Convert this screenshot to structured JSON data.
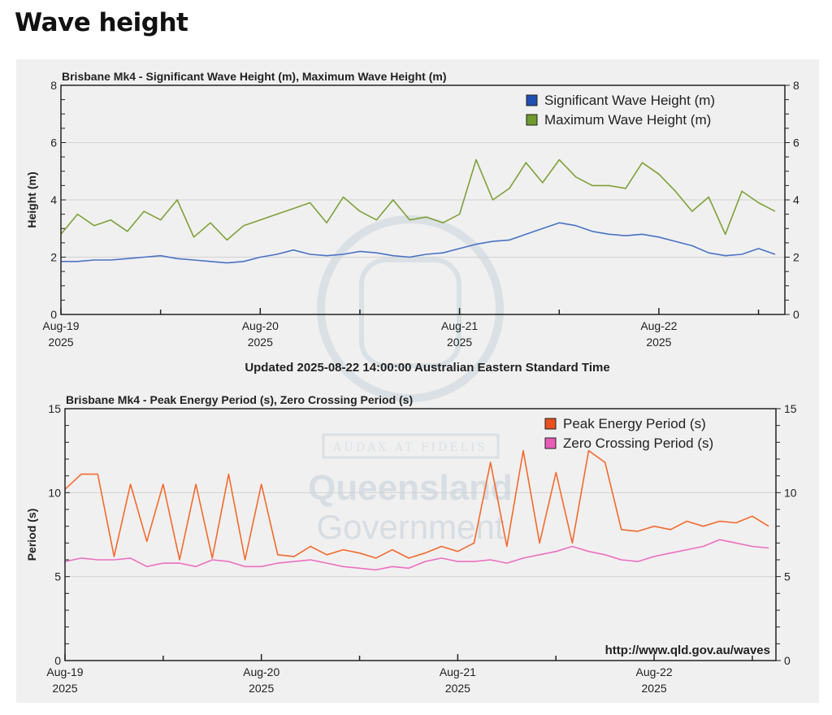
{
  "page_title": "Wave height",
  "updated_text": "Updated 2025-08-22 14:00:00 Australian Eastern Standard Time",
  "credit_url": "http://www.qld.gov.au/waves",
  "watermark": {
    "line1": "Queensland",
    "line2": "Government",
    "motto": "AUDAX AT FIDELIS"
  },
  "chart_data": [
    {
      "type": "line",
      "title": "Brisbane Mk4 - Significant Wave Height (m), Maximum Wave Height (m)",
      "xlabel": "",
      "ylabel": "Height (m)",
      "ylim": [
        0,
        8
      ],
      "yticks": [
        "0",
        "2",
        "4",
        "6",
        "8"
      ],
      "grid": true,
      "legend_position": "top-right",
      "x_unit": "hours since Aug-19 2025 00:00",
      "xticks": [
        {
          "label": "Aug-19",
          "year": "2025"
        },
        {
          "label": "Aug-20",
          "year": "2025"
        },
        {
          "label": "Aug-21",
          "year": "2025"
        },
        {
          "label": "Aug-22",
          "year": "2025"
        }
      ],
      "x": [
        0,
        2,
        4,
        6,
        8,
        10,
        12,
        14,
        16,
        18,
        20,
        22,
        24,
        26,
        28,
        30,
        32,
        34,
        36,
        38,
        40,
        42,
        44,
        46,
        48,
        50,
        52,
        54,
        56,
        58,
        60,
        62,
        64,
        66,
        68,
        70,
        72,
        74,
        76,
        78,
        80,
        82,
        84,
        86
      ],
      "series": [
        {
          "name": "Significant Wave Height (m)",
          "color": "#4a72c4",
          "swatch": "#1f4fb0",
          "values": [
            1.85,
            1.85,
            1.9,
            1.9,
            1.95,
            2.0,
            2.05,
            1.95,
            1.9,
            1.85,
            1.8,
            1.85,
            2.0,
            2.1,
            2.25,
            2.1,
            2.05,
            2.1,
            2.2,
            2.15,
            2.05,
            2.0,
            2.1,
            2.15,
            2.3,
            2.45,
            2.55,
            2.6,
            2.8,
            3.0,
            3.2,
            3.1,
            2.9,
            2.8,
            2.75,
            2.8,
            2.7,
            2.55,
            2.4,
            2.15,
            2.05,
            2.1,
            2.3,
            2.1
          ]
        },
        {
          "name": "Maximum Wave Height (m)",
          "color": "#7fa03a",
          "swatch": "#6f9a2e",
          "values": [
            2.8,
            3.5,
            3.1,
            3.3,
            2.9,
            3.6,
            3.3,
            4.0,
            2.7,
            3.2,
            2.6,
            3.1,
            3.3,
            3.5,
            3.7,
            3.9,
            3.2,
            4.1,
            3.6,
            3.3,
            4.0,
            3.3,
            3.4,
            3.2,
            3.5,
            5.4,
            4.0,
            4.4,
            5.3,
            4.6,
            5.4,
            4.8,
            4.5,
            4.5,
            4.4,
            5.3,
            4.9,
            4.3,
            3.6,
            4.1,
            2.8,
            4.3,
            3.9,
            3.6
          ]
        }
      ]
    },
    {
      "type": "line",
      "title": "Brisbane Mk4 - Peak Energy Period (s), Zero Crossing Period (s)",
      "xlabel": "",
      "ylabel": "Period (s)",
      "ylim": [
        0,
        15
      ],
      "yticks": [
        "0",
        "5",
        "10",
        "15"
      ],
      "grid": true,
      "legend_position": "top-right",
      "x_unit": "hours since Aug-19 2025 00:00",
      "xticks": [
        {
          "label": "Aug-19",
          "year": "2025"
        },
        {
          "label": "Aug-20",
          "year": "2025"
        },
        {
          "label": "Aug-21",
          "year": "2025"
        },
        {
          "label": "Aug-22",
          "year": "2025"
        }
      ],
      "x": [
        0,
        2,
        4,
        6,
        8,
        10,
        12,
        14,
        16,
        18,
        20,
        22,
        24,
        26,
        28,
        30,
        32,
        34,
        36,
        38,
        40,
        42,
        44,
        46,
        48,
        50,
        52,
        54,
        56,
        58,
        60,
        62,
        64,
        66,
        68,
        70,
        72,
        74,
        76,
        78,
        80,
        82,
        84,
        86
      ],
      "series": [
        {
          "name": "Peak Energy Period (s)",
          "color": "#f26a2e",
          "swatch": "#e8501e",
          "values": [
            10.2,
            11.1,
            11.1,
            6.2,
            10.5,
            7.1,
            10.5,
            6.0,
            10.5,
            6.1,
            11.1,
            6.0,
            10.5,
            6.3,
            6.2,
            6.8,
            6.3,
            6.6,
            6.4,
            6.1,
            6.6,
            6.1,
            6.4,
            6.8,
            6.5,
            7.0,
            11.8,
            6.8,
            12.5,
            7.0,
            11.2,
            7.0,
            12.5,
            11.8,
            7.8,
            7.7,
            8.0,
            7.8,
            8.3,
            8.0,
            8.3,
            8.2,
            8.6,
            8.0
          ]
        },
        {
          "name": "Zero Crossing Period (s)",
          "color": "#ec6fc0",
          "swatch": "#e85cb8",
          "values": [
            5.9,
            6.1,
            6.0,
            6.0,
            6.1,
            5.6,
            5.8,
            5.8,
            5.6,
            6.0,
            5.9,
            5.6,
            5.6,
            5.8,
            5.9,
            6.0,
            5.8,
            5.6,
            5.5,
            5.4,
            5.6,
            5.5,
            5.9,
            6.1,
            5.9,
            5.9,
            6.0,
            5.8,
            6.1,
            6.3,
            6.5,
            6.8,
            6.5,
            6.3,
            6.0,
            5.9,
            6.2,
            6.4,
            6.6,
            6.8,
            7.2,
            7.0,
            6.8,
            6.7
          ]
        }
      ]
    }
  ]
}
